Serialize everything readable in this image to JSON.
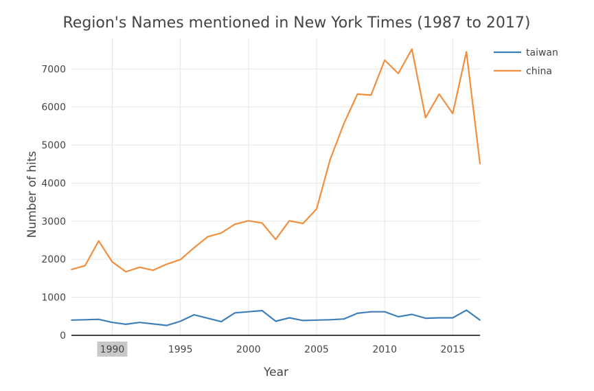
{
  "chart_data": {
    "type": "line",
    "title": "Region's Names mentioned in New York Times (1987 to 2017)",
    "xlabel": "Year",
    "ylabel": "Number of hits",
    "xlim": [
      1987,
      2017
    ],
    "ylim": [
      0,
      7800
    ],
    "x_ticks": [
      1990,
      1995,
      2000,
      2005,
      2010,
      2015
    ],
    "y_ticks": [
      0,
      1000,
      2000,
      3000,
      4000,
      5000,
      6000,
      7000
    ],
    "highlighted_x_tick": 1990,
    "grid": true,
    "legend_position": "top-right",
    "x": [
      1987,
      1988,
      1989,
      1990,
      1991,
      1992,
      1993,
      1994,
      1995,
      1996,
      1997,
      1998,
      1999,
      2000,
      2001,
      2002,
      2003,
      2004,
      2005,
      2006,
      2007,
      2008,
      2009,
      2010,
      2011,
      2012,
      2013,
      2014,
      2015,
      2016,
      2017
    ],
    "series": [
      {
        "name": "taiwan",
        "color": "#3f7fb8",
        "values": [
          400,
          410,
          420,
          340,
          290,
          340,
          300,
          260,
          370,
          540,
          450,
          360,
          590,
          620,
          650,
          370,
          460,
          390,
          400,
          410,
          430,
          580,
          620,
          620,
          490,
          550,
          450,
          460,
          460,
          660,
          400
        ]
      },
      {
        "name": "china",
        "color": "#f28d3b",
        "values": [
          1730,
          1830,
          2480,
          1930,
          1670,
          1790,
          1710,
          1870,
          1990,
          2300,
          2590,
          2690,
          2920,
          3010,
          2950,
          2520,
          3010,
          2940,
          3320,
          4620,
          5560,
          6340,
          6310,
          7230,
          6880,
          7520,
          5720,
          6340,
          5830,
          7450,
          4510
        ]
      }
    ]
  }
}
